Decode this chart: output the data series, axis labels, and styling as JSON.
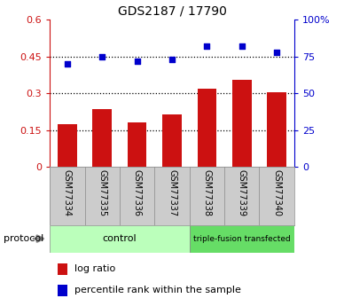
{
  "title": "GDS2187 / 17790",
  "samples": [
    "GSM77334",
    "GSM77335",
    "GSM77336",
    "GSM77337",
    "GSM77338",
    "GSM77339",
    "GSM77340"
  ],
  "log_ratio": [
    0.175,
    0.235,
    0.18,
    0.215,
    0.32,
    0.355,
    0.305
  ],
  "percentile_rank": [
    70,
    75,
    72,
    73,
    82,
    82,
    78
  ],
  "left_ylim": [
    0,
    0.6
  ],
  "right_ylim": [
    0,
    100
  ],
  "left_yticks": [
    0,
    0.15,
    0.3,
    0.45,
    0.6
  ],
  "right_yticks": [
    0,
    25,
    50,
    75,
    100
  ],
  "left_yticklabels": [
    "0",
    "0.15",
    "0.3",
    "0.45",
    "0.6"
  ],
  "right_yticklabels": [
    "0",
    "25",
    "50",
    "75",
    "100%"
  ],
  "bar_color": "#cc1111",
  "dot_color": "#0000cc",
  "sample_area_color": "#cccccc",
  "control_color": "#bbffbb",
  "transfected_color": "#66dd66",
  "control_label": "control",
  "transfected_label": "triple-fusion transfected",
  "protocol_label": "protocol",
  "legend_bar_label": "log ratio",
  "legend_dot_label": "percentile rank within the sample",
  "control_count": 4,
  "transfected_count": 3,
  "dotted_lines": [
    0.15,
    0.3,
    0.45
  ]
}
